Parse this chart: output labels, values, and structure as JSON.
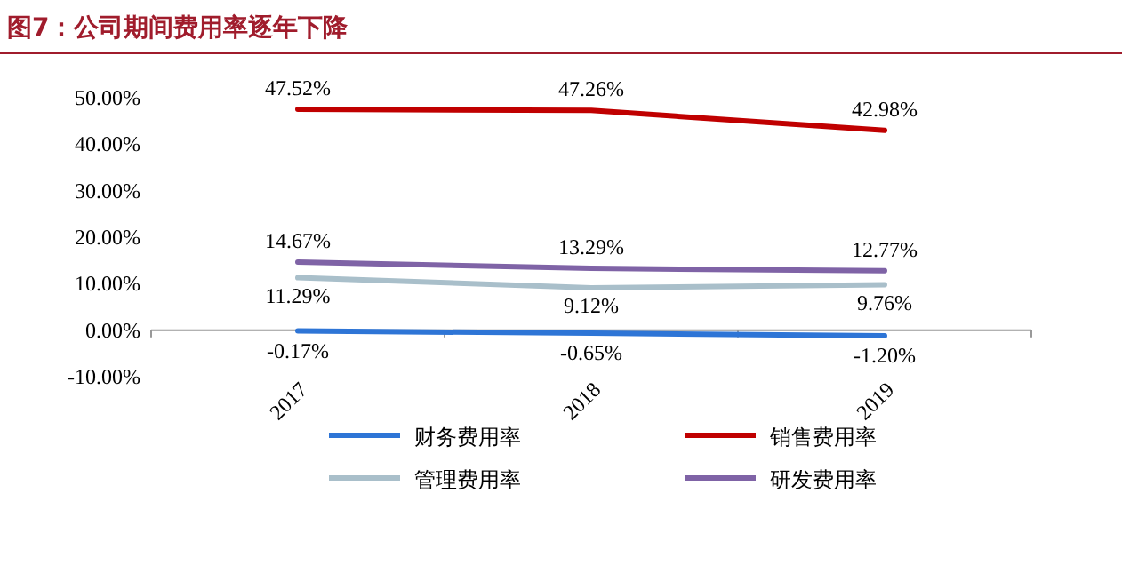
{
  "chart_data": {
    "type": "line",
    "title": "图7：公司期间费用率逐年下降",
    "categories": [
      "2017",
      "2018",
      "2019"
    ],
    "series": [
      {
        "name": "财务费用率",
        "color": "#2e75d6",
        "values": [
          -0.17,
          -0.65,
          -1.2
        ],
        "value_labels": [
          "-0.17%",
          "-0.65%",
          "-1.20%"
        ]
      },
      {
        "name": "销售费用率",
        "color": "#c00000",
        "values": [
          47.52,
          47.26,
          42.98
        ],
        "value_labels": [
          "47.52%",
          "47.26%",
          "42.98%"
        ]
      },
      {
        "name": "管理费用率",
        "color": "#a9bfca",
        "values": [
          11.29,
          9.12,
          9.76
        ],
        "value_labels": [
          "11.29%",
          "9.12%",
          "9.76%"
        ]
      },
      {
        "name": "研发费用率",
        "color": "#7f63a6",
        "values": [
          14.67,
          13.29,
          12.77
        ],
        "value_labels": [
          "14.67%",
          "13.29%",
          "12.77%"
        ]
      }
    ],
    "ylim": [
      -10,
      50
    ],
    "yticks": [
      {
        "value": -10,
        "label": "-10.00%"
      },
      {
        "value": 0,
        "label": "0.00%"
      },
      {
        "value": 10,
        "label": "10.00%"
      },
      {
        "value": 20,
        "label": "20.00%"
      },
      {
        "value": 30,
        "label": "30.00%"
      },
      {
        "value": 40,
        "label": "40.00%"
      },
      {
        "value": 50,
        "label": "50.00%"
      }
    ],
    "grid": false,
    "legend": "bottom",
    "marker": "none",
    "line_style": "solid"
  }
}
